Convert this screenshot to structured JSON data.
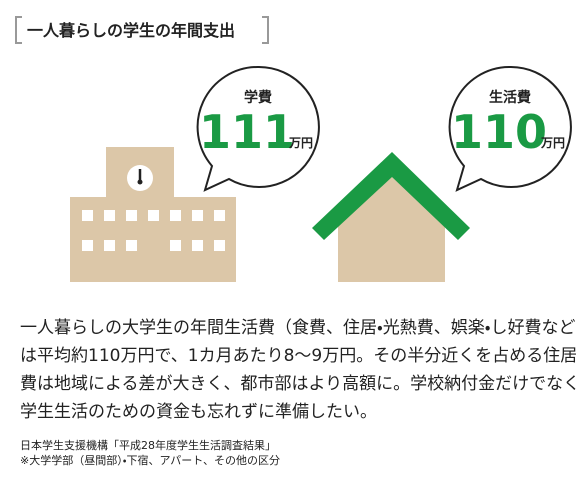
{
  "header": {
    "title": "一人暮らしの学生の年間支出"
  },
  "bubbles": [
    {
      "label": "学費",
      "value": 111,
      "unit": "万円"
    },
    {
      "label": "生活費",
      "value": 110,
      "unit": "万円"
    }
  ],
  "body": {
    "lines": [
      "一人暮らしの大学生の年間生活費（食費、住居・光熱費、娯楽・し好費など",
      "は平均約110万円で、1カ月あたり8〜9万円。その半分近くを占める住居",
      "費は地域による差が大きく、都市部はより高額に。学校納付金だけでなく",
      "学生生活のための資金も忘れずに準備したい。"
    ]
  },
  "source": {
    "lines": [
      "日本学生支援機構「平成28年度学生生活調査結果」",
      "※大学学部（昼間部）・下宿、アパート、その他の区分"
    ]
  }
}
